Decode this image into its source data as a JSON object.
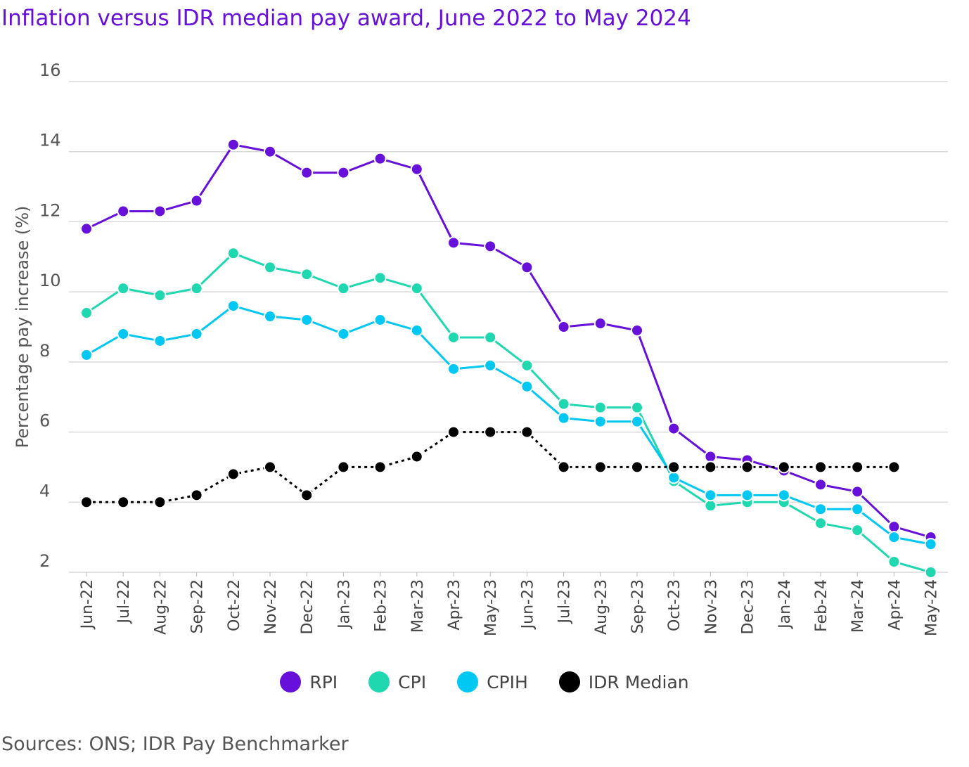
{
  "colors": {
    "title": "#6610d9",
    "grid": "#d9d9d9",
    "rpi": "#6610d9",
    "cpi": "#1fd8b0",
    "cpih": "#00c8f2",
    "idr": "#000000"
  },
  "chart_data": {
    "type": "line",
    "title": "Inflation versus IDR median pay award, June 2022 to May 2024",
    "ylabel": "Percentage pay increase (%)",
    "xlabel": "",
    "ylim": [
      2,
      16
    ],
    "yticks": [
      "2",
      "4",
      "6",
      "8",
      "10",
      "12",
      "14",
      "16"
    ],
    "grid": true,
    "legend_position": "bottom",
    "categories": [
      "Jun-22",
      "Jul-22",
      "Aug-22",
      "Sep-22",
      "Oct-22",
      "Nov-22",
      "Dec-22",
      "Jan-23",
      "Feb-23",
      "Mar-23",
      "Apr-23",
      "May-23",
      "Jun-23",
      "Jul-23",
      "Aug-23",
      "Sep-23",
      "Oct-23",
      "Nov-23",
      "Dec-23",
      "Jan-24",
      "Feb-24",
      "Mar-24",
      "Apr-24",
      "May-24"
    ],
    "series": [
      {
        "name": "RPI",
        "color_key": "rpi",
        "style": "solid",
        "values": [
          11.8,
          12.3,
          12.3,
          12.6,
          14.2,
          14.0,
          13.4,
          13.4,
          13.8,
          13.5,
          11.4,
          11.3,
          10.7,
          9.0,
          9.1,
          8.9,
          6.1,
          5.3,
          5.2,
          4.9,
          4.5,
          4.3,
          3.3,
          3.0
        ]
      },
      {
        "name": "CPI",
        "color_key": "cpi",
        "style": "solid",
        "values": [
          9.4,
          10.1,
          9.9,
          10.1,
          11.1,
          10.7,
          10.5,
          10.1,
          10.4,
          10.1,
          8.7,
          8.7,
          7.9,
          6.8,
          6.7,
          6.7,
          4.6,
          3.9,
          4.0,
          4.0,
          3.4,
          3.2,
          2.3,
          2.0
        ]
      },
      {
        "name": "CPIH",
        "color_key": "cpih",
        "style": "solid",
        "values": [
          8.2,
          8.8,
          8.6,
          8.8,
          9.6,
          9.3,
          9.2,
          8.8,
          9.2,
          8.9,
          7.8,
          7.9,
          7.3,
          6.4,
          6.3,
          6.3,
          4.7,
          4.2,
          4.2,
          4.2,
          3.8,
          3.8,
          3.0,
          2.8
        ]
      },
      {
        "name": "IDR Median",
        "color_key": "idr",
        "style": "dotted",
        "values": [
          4.0,
          4.0,
          4.0,
          4.2,
          4.8,
          5.0,
          4.2,
          5.0,
          5.0,
          5.3,
          6.0,
          6.0,
          6.0,
          5.0,
          5.0,
          5.0,
          5.0,
          5.0,
          5.0,
          5.0,
          5.0,
          5.0,
          5.0,
          null
        ]
      }
    ]
  },
  "source": "Sources: ONS; IDR Pay Benchmarker"
}
